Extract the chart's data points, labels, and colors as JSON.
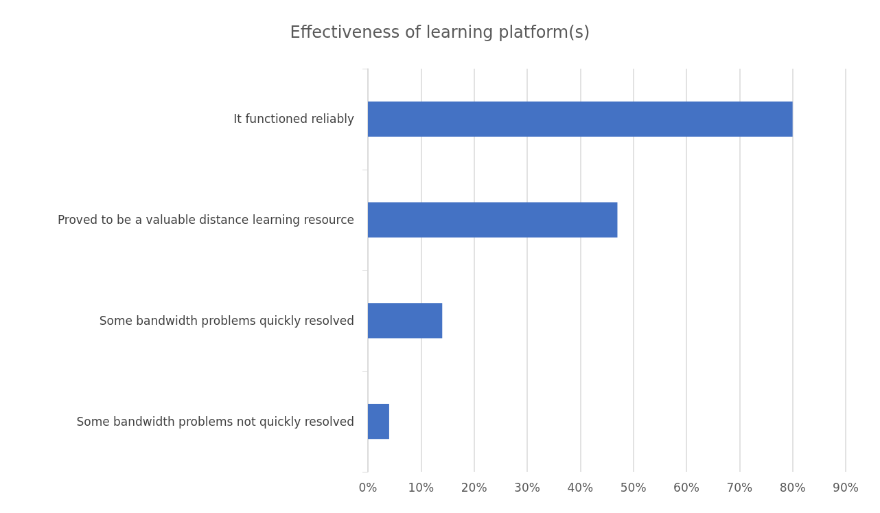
{
  "chart_data": {
    "type": "bar",
    "orientation": "horizontal",
    "title": "Effectiveness of learning platform(s)",
    "categories": [
      "It functioned reliably",
      "Proved to be a valuable distance learning resource",
      "Some bandwidth problems quickly resolved",
      "Some bandwidth problems not quickly resolved"
    ],
    "values": [
      80,
      47,
      14,
      4
    ],
    "color": "#4472c4",
    "xlim": [
      0,
      90
    ],
    "xticks": [
      {
        "value": 0,
        "label": "0%"
      },
      {
        "value": 10,
        "label": "10%"
      },
      {
        "value": 20,
        "label": "20%"
      },
      {
        "value": 30,
        "label": "30%"
      },
      {
        "value": 40,
        "label": "40%"
      },
      {
        "value": 50,
        "label": "50%"
      },
      {
        "value": 60,
        "label": "60%"
      },
      {
        "value": 70,
        "label": "70%"
      },
      {
        "value": 80,
        "label": "80%"
      },
      {
        "value": 90,
        "label": "90%"
      }
    ],
    "grid": "x"
  }
}
